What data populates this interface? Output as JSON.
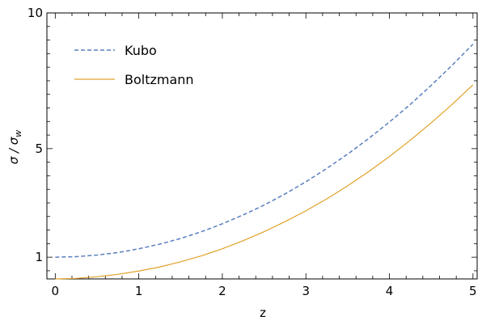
{
  "chart_data": {
    "type": "line",
    "title": "",
    "xlabel": "z",
    "ylabel": {
      "main": "σ / σ",
      "sub": "w"
    },
    "xlim": [
      -0.1,
      5.05
    ],
    "ylim": [
      0.2,
      10
    ],
    "x_ticks": [
      {
        "value": 0,
        "label": "0"
      },
      {
        "value": 1,
        "label": "1"
      },
      {
        "value": 2,
        "label": "2"
      },
      {
        "value": 3,
        "label": "3"
      },
      {
        "value": 4,
        "label": "4"
      },
      {
        "value": 5,
        "label": "5"
      }
    ],
    "y_ticks": [
      {
        "value": 1,
        "label": "1"
      },
      {
        "value": 5,
        "label": "5"
      },
      {
        "value": 10,
        "label": "10"
      }
    ],
    "grid": false,
    "legend_position": "top-left",
    "series": [
      {
        "name": "Kubo",
        "color": "#5a7fbf",
        "style": "dashed",
        "x": [
          0,
          0.25,
          0.5,
          0.75,
          1,
          1.25,
          1.5,
          1.75,
          2,
          2.25,
          2.5,
          2.75,
          3,
          3.25,
          3.5,
          3.75,
          4,
          4.25,
          4.5,
          4.75,
          5
        ],
        "y": [
          1.0,
          1.02,
          1.08,
          1.17,
          1.31,
          1.48,
          1.69,
          1.94,
          2.23,
          2.56,
          2.92,
          3.33,
          3.78,
          4.27,
          4.8,
          5.37,
          5.98,
          6.63,
          7.33,
          8.07,
          8.85
        ]
      },
      {
        "name": "Boltzmann",
        "color": "#e0a22a",
        "style": "solid",
        "x": [
          0,
          0.25,
          0.5,
          0.75,
          1,
          1.25,
          1.5,
          1.75,
          2,
          2.25,
          2.5,
          2.75,
          3,
          3.25,
          3.5,
          3.75,
          4,
          4.25,
          4.5,
          4.75,
          5
        ],
        "y": [
          0.2,
          0.22,
          0.28,
          0.37,
          0.49,
          0.64,
          0.83,
          1.05,
          1.31,
          1.61,
          1.94,
          2.31,
          2.71,
          3.15,
          3.63,
          4.15,
          4.71,
          5.31,
          5.95,
          6.63,
          7.35
        ]
      }
    ]
  }
}
